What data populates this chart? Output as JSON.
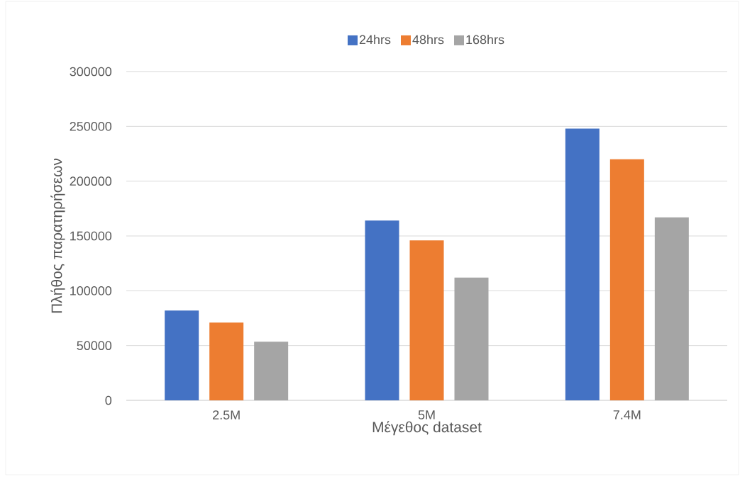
{
  "chart_data": {
    "type": "bar",
    "xlabel": "Μέγεθος dataset",
    "ylabel": "Πλήθος παρατηρήσεων",
    "categories": [
      "2.5M",
      "5M",
      "7.4M"
    ],
    "series": [
      {
        "name": "24hrs",
        "color": "#4472c4",
        "values": [
          82000,
          164000,
          248000
        ]
      },
      {
        "name": "48hrs",
        "color": "#ed7d31",
        "values": [
          71000,
          146000,
          220000
        ]
      },
      {
        "name": "168hrs",
        "color": "#a5a5a5",
        "values": [
          53500,
          112000,
          167000
        ]
      }
    ],
    "ylim": [
      0,
      300000
    ],
    "yticks": [
      0,
      50000,
      100000,
      150000,
      200000,
      250000,
      300000
    ],
    "grid": "y",
    "legend": "top"
  }
}
